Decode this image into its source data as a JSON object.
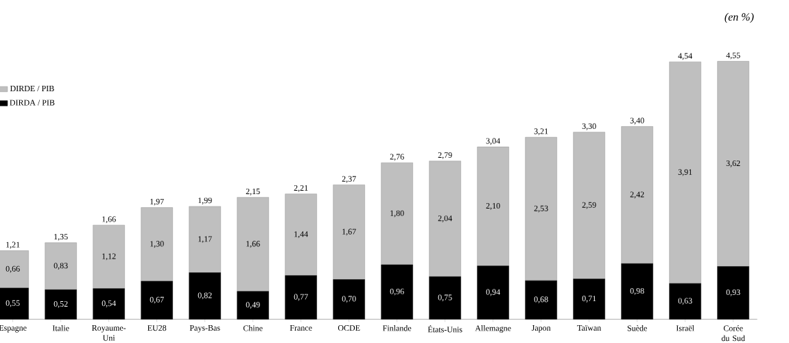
{
  "chart_data": {
    "type": "bar",
    "stacked": true,
    "annotations": [
      "(en %)"
    ],
    "categories": [
      "Espagne",
      "Italie",
      "Royaume-Uni",
      "EU28",
      "Pays-Bas",
      "Chine",
      "France",
      "OCDE",
      "Finlande",
      "États-Unis",
      "Allemagne",
      "Japon",
      "Taïwan",
      "Suède",
      "Israël",
      "Corée du Sud"
    ],
    "series": [
      {
        "name": "DIRDA / PIB",
        "color": "#000000",
        "values": [
          0.55,
          0.52,
          0.54,
          0.67,
          0.82,
          0.49,
          0.77,
          0.7,
          0.96,
          0.75,
          0.94,
          0.68,
          0.71,
          0.98,
          0.63,
          0.93
        ],
        "value_labels": [
          "0,55",
          "0,52",
          "0,54",
          "0,67",
          "0,82",
          "0,49",
          "0,77",
          "0,70",
          "0,96",
          "0,75",
          "0,94",
          "0,68",
          "0,71",
          "0,98",
          "0,63",
          "0,93"
        ]
      },
      {
        "name": "DIRDE / PIB",
        "color": "#bfbfbf",
        "values": [
          0.66,
          0.83,
          1.12,
          1.3,
          1.17,
          1.66,
          1.44,
          1.67,
          1.8,
          2.04,
          2.1,
          2.53,
          2.59,
          2.42,
          3.91,
          3.62
        ],
        "value_labels": [
          "0,66",
          "0,83",
          "1,12",
          "1,30",
          "1,17",
          "1,66",
          "1,44",
          "1,67",
          "1,80",
          "2,04",
          "2,10",
          "2,53",
          "2,59",
          "2,42",
          "3,91",
          "3,62"
        ]
      }
    ],
    "totals": [
      "1,21",
      "1,35",
      "1,66",
      "1,97",
      "1,99",
      "2,15",
      "2,21",
      "2,37",
      "2,76",
      "2,79",
      "3,04",
      "3,21",
      "3,30",
      "3,40",
      "4,54",
      "4,55"
    ],
    "tick_labels": "x",
    "legend": "top left",
    "grid": false
  }
}
